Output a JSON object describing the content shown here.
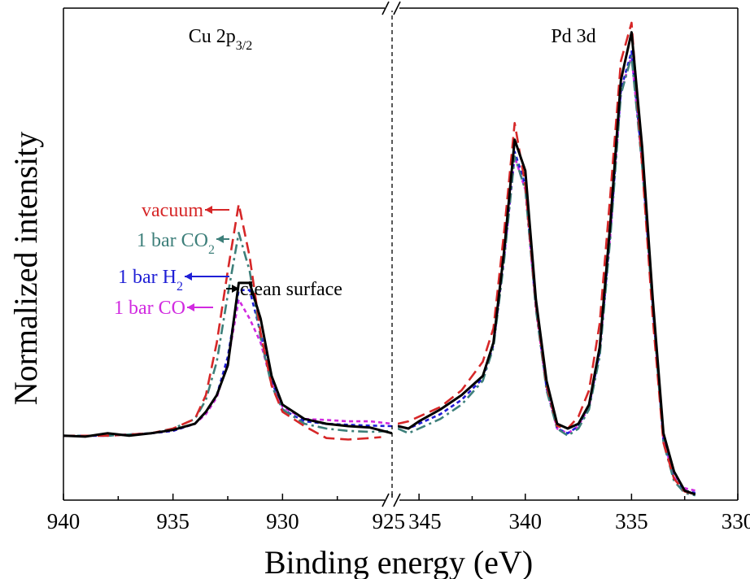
{
  "chart_data": {
    "type": "line",
    "xlabel": "Binding energy (eV)",
    "ylabel": "Normalized intensity",
    "y_ticks_shown": false,
    "grid": false,
    "break_mark": "//",
    "colors": {
      "vacuum": "#d62728",
      "co2": "#3d7f7a",
      "h2": "#1f1fd6",
      "co": "#d12ae0",
      "clean": "#000000"
    },
    "panels": [
      {
        "title": "Cu 2p",
        "title_sub": "3/2",
        "xlim": [
          940,
          925
        ],
        "xticks": [
          940,
          935,
          930,
          925
        ],
        "series": [
          {
            "key": "clean",
            "style": "solid",
            "x": [
              940,
              939,
              938,
              937,
              936,
              935,
              934,
              933.5,
              933,
              932.5,
              932,
              931.5,
              931,
              930.5,
              930,
              929,
              928,
              927,
              926,
              925
            ],
            "y": [
              0.135,
              0.133,
              0.14,
              0.135,
              0.14,
              0.147,
              0.16,
              0.185,
              0.22,
              0.282,
              0.455,
              0.455,
              0.38,
              0.26,
              0.2,
              0.17,
              0.16,
              0.155,
              0.152,
              0.14
            ]
          },
          {
            "key": "vacuum",
            "style": "dashed",
            "x": [
              940,
              938,
              936,
              935,
              934,
              933.5,
              933,
              932.5,
              932,
              931.5,
              931,
              930.5,
              930,
              929,
              928,
              927,
              926,
              925.5
            ],
            "y": [
              0.135,
              0.135,
              0.14,
              0.15,
              0.17,
              0.22,
              0.33,
              0.48,
              0.62,
              0.51,
              0.35,
              0.24,
              0.185,
              0.155,
              0.13,
              0.127,
              0.13,
              0.132
            ]
          },
          {
            "key": "co2",
            "style": "dashdot",
            "x": [
              940,
              938,
              936,
              935,
              934,
              933.5,
              933,
              932.5,
              932,
              931.5,
              931,
              930.5,
              930,
              929,
              928,
              927,
              926,
              925
            ],
            "y": [
              0.135,
              0.135,
              0.14,
              0.15,
              0.17,
              0.21,
              0.29,
              0.43,
              0.56,
              0.48,
              0.34,
              0.24,
              0.19,
              0.16,
              0.15,
              0.145,
              0.143,
              0.145
            ]
          },
          {
            "key": "h2",
            "style": "dotted",
            "x": [
              940,
              938,
              936,
              935,
              934,
              933.5,
              933,
              932.5,
              932,
              931.5,
              931,
              930.5,
              930,
              929,
              928,
              927,
              926,
              925
            ],
            "y": [
              0.135,
              0.135,
              0.14,
              0.145,
              0.16,
              0.185,
              0.22,
              0.3,
              0.44,
              0.44,
              0.35,
              0.25,
              0.19,
              0.165,
              0.16,
              0.158,
              0.156,
              0.155
            ]
          },
          {
            "key": "co",
            "style": "dotted",
            "x": [
              940,
              938,
              936,
              935,
              934,
              933.5,
              933,
              932.5,
              932,
              931.5,
              931,
              930.5,
              930,
              929,
              928,
              927,
              926,
              925
            ],
            "y": [
              0.135,
              0.135,
              0.14,
              0.145,
              0.16,
              0.18,
              0.215,
              0.29,
              0.42,
              0.38,
              0.33,
              0.245,
              0.195,
              0.17,
              0.168,
              0.165,
              0.165,
              0.16
            ]
          }
        ],
        "annotations": [
          {
            "text": "vacuum",
            "key": "vacuum"
          },
          {
            "text": "1 bar CO",
            "sub": "2",
            "key": "co2"
          },
          {
            "text": "1 bar H",
            "sub": "2",
            "key": "h2"
          },
          {
            "text": "1 bar CO",
            "sub": "",
            "key": "co"
          },
          {
            "text": "clean surface",
            "sub": "",
            "key": "clean"
          }
        ]
      },
      {
        "title": "Pd 3d",
        "title_sub": "",
        "xlim": [
          346,
          330
        ],
        "xticks": [
          345,
          340,
          335,
          330
        ],
        "series": [
          {
            "key": "clean",
            "style": "solid",
            "x": [
              346,
              345.5,
              345,
              344,
              343,
              342,
              341.5,
              341,
              340.5,
              340,
              339.5,
              339,
              338.5,
              338,
              337.5,
              337,
              336.5,
              336,
              335.5,
              335,
              334.5,
              334,
              333.5,
              333,
              332.5,
              332
            ],
            "y": [
              0.155,
              0.15,
              0.165,
              0.19,
              0.22,
              0.26,
              0.33,
              0.52,
              0.755,
              0.69,
              0.42,
              0.25,
              0.16,
              0.15,
              0.16,
              0.2,
              0.32,
              0.58,
              0.88,
              0.98,
              0.74,
              0.42,
              0.14,
              0.06,
              0.02,
              0.012
            ]
          },
          {
            "key": "vacuum",
            "style": "dashed",
            "x": [
              346,
              345.5,
              345,
              344,
              343,
              342,
              341.5,
              341,
              340.5,
              340,
              339.5,
              339,
              338.5,
              338,
              337.5,
              337,
              336.5,
              336,
              335.5,
              335,
              334.5,
              334,
              333.5,
              333,
              332.5,
              332
            ],
            "y": [
              0.16,
              0.165,
              0.175,
              0.195,
              0.23,
              0.29,
              0.36,
              0.56,
              0.79,
              0.66,
              0.41,
              0.24,
              0.155,
              0.15,
              0.175,
              0.23,
              0.37,
              0.64,
              0.92,
              1.0,
              0.7,
              0.38,
              0.12,
              0.045,
              0.018,
              0.012
            ]
          },
          {
            "key": "co2",
            "style": "dashdot",
            "x": [
              346,
              345.5,
              345,
              344,
              343,
              342,
              341.5,
              341,
              340.5,
              340,
              339.5,
              339,
              338.5,
              338,
              337.5,
              337,
              336.5,
              336,
              335.5,
              335,
              334.5,
              334,
              333.5,
              333,
              332.5,
              332
            ],
            "y": [
              0.15,
              0.14,
              0.15,
              0.17,
              0.2,
              0.25,
              0.32,
              0.5,
              0.72,
              0.65,
              0.4,
              0.23,
              0.15,
              0.135,
              0.15,
              0.19,
              0.3,
              0.55,
              0.85,
              0.93,
              0.7,
              0.4,
              0.12,
              0.04,
              0.015,
              0.01
            ]
          },
          {
            "key": "h2",
            "style": "dotted",
            "x": [
              346,
              345.5,
              345,
              344,
              343,
              342,
              341.5,
              341,
              340.5,
              340,
              339.5,
              339,
              338.5,
              338,
              337.5,
              337,
              336.5,
              336,
              335.5,
              335,
              334.5,
              334,
              333.5,
              333,
              332.5,
              332
            ],
            "y": [
              0.155,
              0.15,
              0.16,
              0.18,
              0.21,
              0.255,
              0.325,
              0.51,
              0.73,
              0.66,
              0.405,
              0.235,
              0.15,
              0.14,
              0.155,
              0.195,
              0.31,
              0.56,
              0.86,
              0.94,
              0.71,
              0.405,
              0.125,
              0.045,
              0.02,
              0.015
            ]
          },
          {
            "key": "co",
            "style": "dotted",
            "x": [
              346,
              345.5,
              345,
              344,
              343,
              342,
              341.5,
              341,
              340.5,
              340,
              339.5,
              339,
              338.5,
              338,
              337.5,
              337,
              336.5,
              336,
              335.5,
              335,
              334.5,
              334,
              333.5,
              333,
              332.5,
              332
            ],
            "y": [
              0.155,
              0.15,
              0.16,
              0.18,
              0.21,
              0.255,
              0.325,
              0.505,
              0.72,
              0.65,
              0.4,
              0.235,
              0.15,
              0.14,
              0.155,
              0.195,
              0.31,
              0.555,
              0.855,
              0.93,
              0.705,
              0.4,
              0.125,
              0.048,
              0.025,
              0.02
            ]
          }
        ],
        "annotations": []
      }
    ]
  }
}
